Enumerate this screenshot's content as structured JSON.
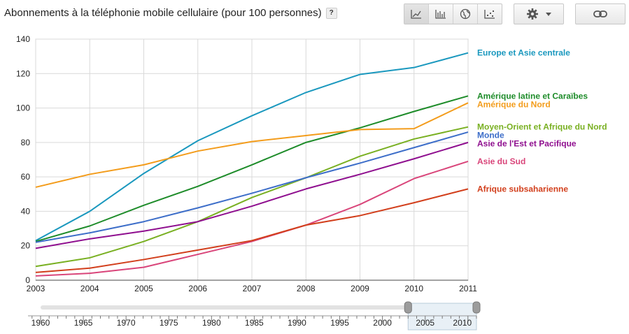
{
  "title": "Abonnements à la téléphonie mobile cellulaire (pour 100 personnes)",
  "help_label": "?",
  "toolbar": {
    "tools": [
      {
        "name": "line-chart-icon",
        "active": true
      },
      {
        "name": "bar-chart-icon",
        "active": false
      },
      {
        "name": "globe-icon",
        "active": false
      },
      {
        "name": "scatter-icon",
        "active": false
      }
    ],
    "settings_icon": "gear-icon",
    "dropdown_icon": "chevron-down-icon",
    "link_icon": "link-icon"
  },
  "chart_data": {
    "type": "line",
    "x": [
      2003,
      2004,
      2005,
      2006,
      2007,
      2008,
      2009,
      2010,
      2011
    ],
    "ylim": [
      0,
      140
    ],
    "yticks": [
      0,
      20,
      40,
      60,
      80,
      100,
      120,
      140
    ],
    "grid": true,
    "legend": "right",
    "series": [
      {
        "name": "Europe et Asie centrale",
        "color": "#1a98be",
        "values": [
          23,
          40,
          62,
          81,
          95.5,
          109,
          119.5,
          123.5,
          132
        ]
      },
      {
        "name": "Amérique latine et Caraïbes",
        "color": "#1e8c2a",
        "values": [
          22.5,
          31.5,
          43.5,
          54.5,
          67,
          80,
          88.5,
          98,
          107
        ]
      },
      {
        "name": "Amérique du Nord",
        "color": "#f39c1b",
        "values": [
          54,
          61.5,
          67,
          75,
          80.5,
          84,
          87.5,
          88,
          103
        ]
      },
      {
        "name": "Moyen-Orient et Afrique du Nord",
        "color": "#79b022",
        "values": [
          8,
          13,
          22.5,
          34,
          48,
          59.5,
          72,
          82,
          89
        ]
      },
      {
        "name": "Monde",
        "color": "#3d6ec9",
        "values": [
          22,
          27.5,
          34,
          42,
          50.5,
          59.5,
          68,
          77,
          86
        ]
      },
      {
        "name": "Asie de l'Est et Pacifique",
        "color": "#8f0f8f",
        "values": [
          18.5,
          24,
          28.5,
          34,
          43,
          53,
          61.5,
          70.5,
          80
        ]
      },
      {
        "name": "Asie du Sud",
        "color": "#d9457a",
        "values": [
          2.5,
          4,
          7.5,
          15,
          22.5,
          32,
          44,
          59,
          69
        ]
      },
      {
        "name": "Afrique subsaharienne",
        "color": "#d23f1c",
        "values": [
          4.5,
          7,
          12,
          17.5,
          23,
          32,
          37.5,
          45,
          53
        ]
      }
    ]
  },
  "timeline": {
    "labels": [
      1960,
      1965,
      1970,
      1975,
      1980,
      1985,
      1990,
      1995,
      2000,
      2005,
      2010
    ],
    "range": [
      1960,
      2011
    ],
    "selection": [
      2003,
      2011
    ]
  }
}
